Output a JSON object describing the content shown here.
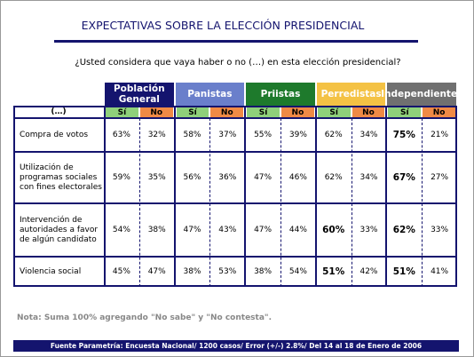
{
  "title": "EXPECTATIVAS SOBRE LA ELECCIÓN PRESIDENCIAL",
  "question": "¿Usted considera que vaya haber o no (…) en esta elección presidencial?",
  "table": {
    "corner": "(…)",
    "yes": "Sí",
    "no": "No",
    "yes_color": "#8fd07a",
    "no_color": "#f08a45",
    "groups": [
      {
        "label": "Población General",
        "color": "#14146e"
      },
      {
        "label": "Panistas",
        "color": "#6a7fcb"
      },
      {
        "label": "Priistas",
        "color": "#1e7a2c"
      },
      {
        "label": "Perredistas",
        "color": "#f4c244"
      },
      {
        "label": "Independientes",
        "color": "#707070"
      }
    ],
    "rows": [
      {
        "label": "Compra de votos",
        "values": [
          "63%",
          "32%",
          "58%",
          "37%",
          "55%",
          "39%",
          "62%",
          "34%",
          "75%",
          "21%"
        ],
        "bold": [
          8
        ]
      },
      {
        "label": "Utilización de programas sociales con fines electorales",
        "values": [
          "59%",
          "35%",
          "56%",
          "36%",
          "47%",
          "46%",
          "62%",
          "34%",
          "67%",
          "27%"
        ],
        "bold": [
          8
        ]
      },
      {
        "label": "Intervención de autoridades a favor de algún candidato",
        "values": [
          "54%",
          "38%",
          "47%",
          "43%",
          "47%",
          "44%",
          "60%",
          "33%",
          "62%",
          "33%"
        ],
        "bold": [
          6,
          8
        ]
      },
      {
        "label": "Violencia social",
        "values": [
          "45%",
          "47%",
          "38%",
          "53%",
          "38%",
          "54%",
          "51%",
          "42%",
          "51%",
          "41%"
        ],
        "bold": [
          6,
          8
        ]
      }
    ]
  },
  "note": "Nota: Suma 100% agregando \"No sabe\" y \"No contesta\".",
  "footer": "Fuente Parametría: Encuesta Nacional/ 1200 casos/ Error (+/-) 2.8%/ Del 14 al 18 de Enero de 2006"
}
